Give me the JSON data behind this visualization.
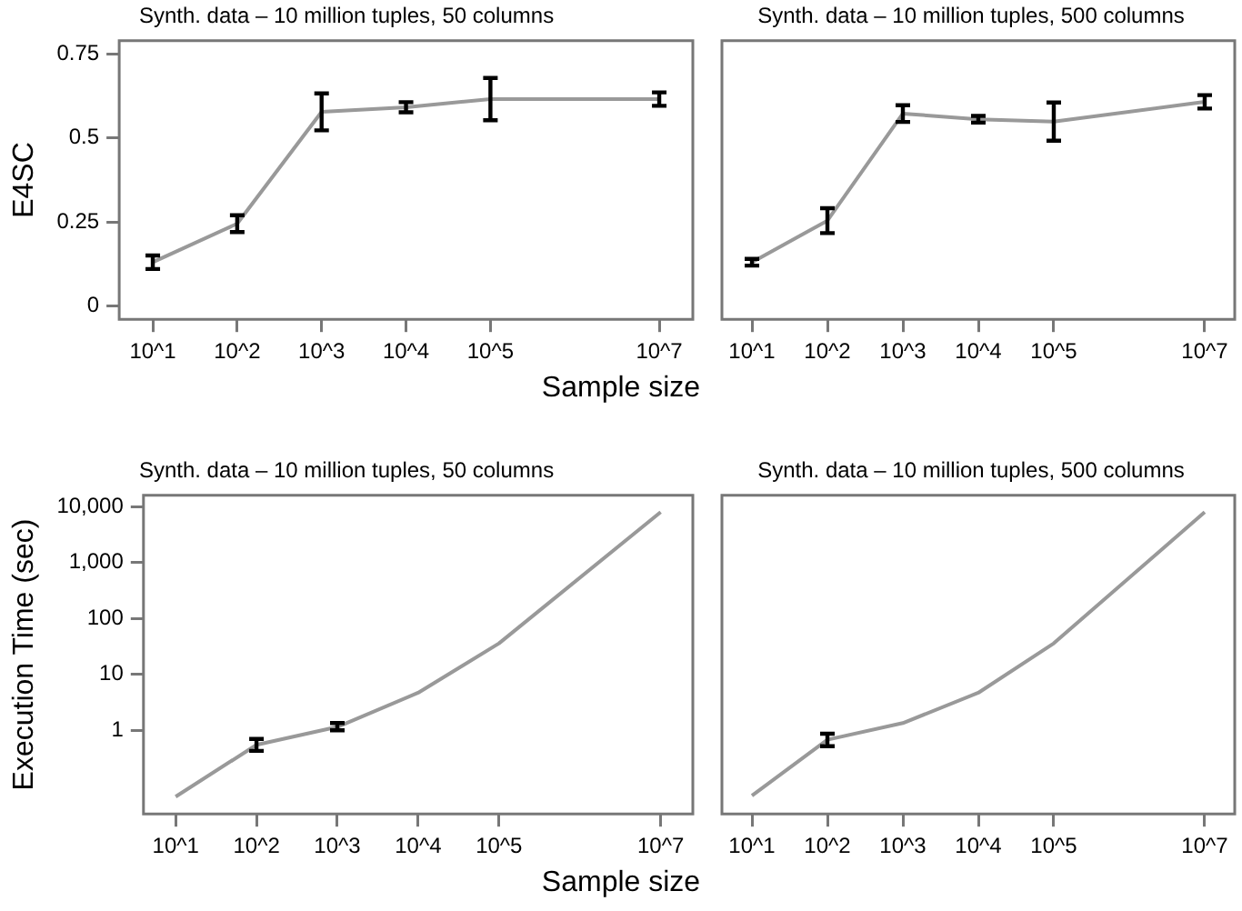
{
  "chart_data": [
    {
      "type": "line",
      "title": "Synth. data – 10 million tuples, 50 columns",
      "ylabel": "E4SC",
      "xlabel": "Sample size",
      "log": "x",
      "x": [
        10,
        100,
        1000,
        10000,
        100000,
        10000000
      ],
      "series": [
        {
          "color": "#999999",
          "values": [
            0.13,
            0.245,
            0.578,
            0.592,
            0.616,
            0.616
          ],
          "errors": [
            0.02,
            0.025,
            0.055,
            0.015,
            0.063,
            0.02
          ]
        }
      ],
      "xlim": [
        4,
        25000000
      ],
      "xticks": [
        {
          "value": 10,
          "label": "10^1"
        },
        {
          "value": 100,
          "label": "10^2"
        },
        {
          "value": 1000,
          "label": "10^3"
        },
        {
          "value": 10000,
          "label": "10^4"
        },
        {
          "value": 100000,
          "label": "10^5"
        },
        {
          "value": 10000000,
          "label": "10^7"
        }
      ],
      "ylim": [
        -0.04,
        0.79
      ],
      "yticks": [
        0,
        0.25,
        0.5,
        0.75
      ]
    },
    {
      "type": "line",
      "title": "Synth. data – 10 million tuples, 500 columns",
      "tick_labels": "x",
      "log": "x",
      "x": [
        10,
        100,
        1000,
        10000,
        100000,
        10000000
      ],
      "series": [
        {
          "color": "#999999",
          "values": [
            0.13,
            0.254,
            0.573,
            0.556,
            0.549,
            0.608
          ],
          "errors": [
            0.01,
            0.037,
            0.025,
            0.01,
            0.057,
            0.02
          ]
        }
      ],
      "xlim": [
        4,
        25000000
      ],
      "xticks": [
        {
          "value": 10,
          "label": "10^1"
        },
        {
          "value": 100,
          "label": "10^2"
        },
        {
          "value": 1000,
          "label": "10^3"
        },
        {
          "value": 10000,
          "label": "10^4"
        },
        {
          "value": 100000,
          "label": "10^5"
        },
        {
          "value": 10000000,
          "label": "10^7"
        }
      ],
      "ylim": [
        -0.04,
        0.79
      ]
    },
    {
      "type": "line",
      "title": "Synth. data – 10 million tuples, 50 columns",
      "ylabel": "Execution Time (sec)",
      "xlabel": "Sample size",
      "log": "xy",
      "x": [
        10,
        100,
        1000,
        10000,
        100000,
        10000000
      ],
      "series": [
        {
          "color": "#999999",
          "values": [
            0.065,
            0.55,
            1.15,
            4.7,
            36,
            8000
          ],
          "errors": [
            null,
            [
              0.43,
              0.7
            ],
            [
              1.0,
              1.35
            ],
            null,
            null,
            null
          ]
        }
      ],
      "xlim": [
        4,
        25000000
      ],
      "xticks": [
        {
          "value": 10,
          "label": "10^1"
        },
        {
          "value": 100,
          "label": "10^2"
        },
        {
          "value": 1000,
          "label": "10^3"
        },
        {
          "value": 10000,
          "label": "10^4"
        },
        {
          "value": 100000,
          "label": "10^5"
        },
        {
          "value": 10000000,
          "label": "10^7"
        }
      ],
      "ylim": [
        0.032,
        16000
      ],
      "yticks": [
        1,
        10,
        100,
        {
          "value": 1000,
          "label": "1,000"
        },
        {
          "value": 10000,
          "label": "10,000"
        }
      ]
    },
    {
      "type": "line",
      "title": "Synth. data – 10 million tuples, 500 columns",
      "log": "xy",
      "tick_labels": "x",
      "x": [
        10,
        100,
        1000,
        10000,
        100000,
        10000000
      ],
      "series": [
        {
          "color": "#999999",
          "values": [
            0.068,
            0.68,
            1.35,
            4.7,
            36,
            8000
          ],
          "errors": [
            null,
            [
              0.52,
              0.87
            ],
            null,
            null,
            null,
            null
          ]
        }
      ],
      "xlim": [
        4,
        25000000
      ],
      "xticks": [
        {
          "value": 10,
          "label": "10^1"
        },
        {
          "value": 100,
          "label": "10^2"
        },
        {
          "value": 1000,
          "label": "10^3"
        },
        {
          "value": 10000,
          "label": "10^4"
        },
        {
          "value": 100000,
          "label": "10^5"
        },
        {
          "value": 10000000,
          "label": "10^7"
        }
      ],
      "ylim": [
        0.032,
        16000
      ]
    }
  ]
}
